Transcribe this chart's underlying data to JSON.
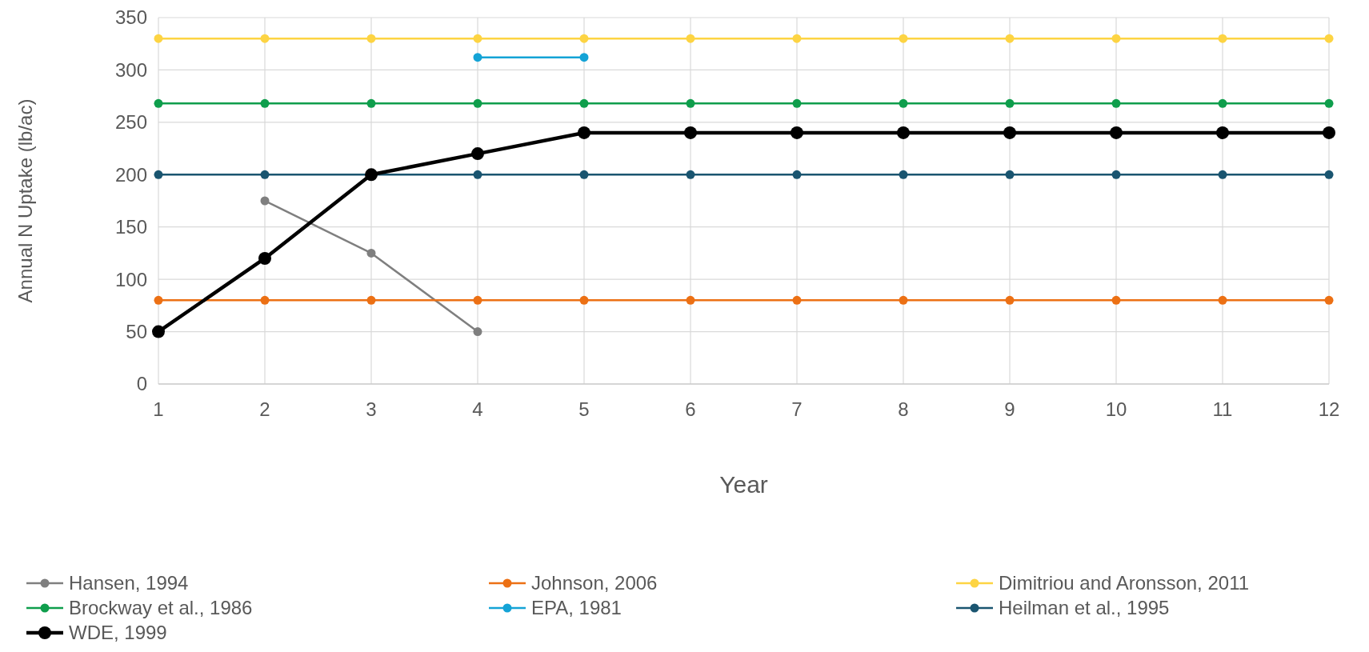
{
  "chart_data": {
    "type": "line",
    "xlabel": "Year",
    "ylabel": "Annual N Uptake (lb/ac)",
    "x": [
      1,
      2,
      3,
      4,
      5,
      6,
      7,
      8,
      9,
      10,
      11,
      12
    ],
    "xlim": [
      1,
      12
    ],
    "xticks": [
      1,
      2,
      3,
      4,
      5,
      6,
      7,
      8,
      9,
      10,
      11,
      12
    ],
    "ylim": [
      0,
      350
    ],
    "yticks": [
      0,
      50,
      100,
      150,
      200,
      250,
      300,
      350
    ],
    "grid": true,
    "legend": "bottom",
    "marker": "circle",
    "line_style": "solid",
    "series": [
      {
        "name": "Hansen, 1994",
        "color": "#7f7f7f",
        "values": [
          null,
          175,
          125,
          50,
          null,
          null,
          null,
          null,
          null,
          null,
          null,
          null
        ]
      },
      {
        "name": "Johnson, 2006",
        "color": "#ec7014",
        "values": [
          80,
          80,
          80,
          80,
          80,
          80,
          80,
          80,
          80,
          80,
          80,
          80
        ]
      },
      {
        "name": "Dimitriou and Aronsson, 2011",
        "color": "#fdd443",
        "values": [
          330,
          330,
          330,
          330,
          330,
          330,
          330,
          330,
          330,
          330,
          330,
          330
        ]
      },
      {
        "name": "Brockway et al., 1986",
        "color": "#0f9e4c",
        "values": [
          268,
          268,
          268,
          268,
          268,
          268,
          268,
          268,
          268,
          268,
          268,
          268
        ]
      },
      {
        "name": "EPA, 1981",
        "color": "#14a3d6",
        "values": [
          null,
          null,
          null,
          312,
          312,
          null,
          null,
          null,
          null,
          null,
          null,
          null
        ]
      },
      {
        "name": "Heilman et al., 1995",
        "color": "#1a5570",
        "values": [
          200,
          200,
          200,
          200,
          200,
          200,
          200,
          200,
          200,
          200,
          200,
          200
        ]
      },
      {
        "name": "WDE, 1999",
        "color": "#000000",
        "values": [
          50,
          120,
          200,
          220,
          240,
          240,
          240,
          240,
          240,
          240,
          240,
          240
        ]
      }
    ]
  }
}
